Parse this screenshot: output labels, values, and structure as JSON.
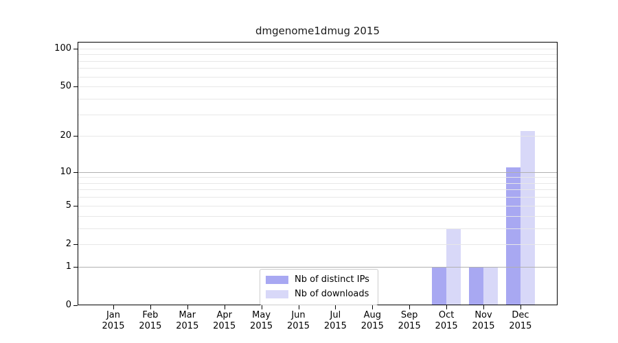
{
  "title": "dmgenome1dmug 2015",
  "colors": {
    "background": "#ffffff",
    "ips_bar": "#a8a8f2",
    "downloads_bar": "#d8d8f8",
    "grid_major": "#b0b0b0",
    "grid_minor": "#e7e7e7",
    "frame": "#000000"
  },
  "legend": {
    "items": [
      {
        "label": "Nb of distinct IPs",
        "color": "#a8a8f2"
      },
      {
        "label": "Nb of downloads",
        "color": "#d8d8f8"
      }
    ]
  },
  "chart_data": {
    "type": "bar",
    "title": "dmgenome1dmug 2015",
    "categories": [
      "Jan",
      "Feb",
      "Mar",
      "Apr",
      "May",
      "Jun",
      "Jul",
      "Aug",
      "Sep",
      "Oct",
      "Nov",
      "Dec"
    ],
    "category_year": "2015",
    "series": [
      {
        "name": "Nb of distinct IPs",
        "color": "#a8a8f2",
        "values": [
          0,
          0,
          0,
          0,
          0,
          0,
          0,
          0,
          0,
          1,
          1,
          11
        ]
      },
      {
        "name": "Nb of downloads",
        "color": "#d8d8f8",
        "values": [
          0,
          0,
          0,
          0,
          0,
          0,
          0,
          0,
          0,
          3,
          1,
          22
        ]
      }
    ],
    "yscale": "log1p",
    "ylim": [
      0,
      113
    ],
    "yticks": [
      0,
      1,
      2,
      5,
      10,
      20,
      50,
      100
    ],
    "ytick_labels": [
      "0",
      "1",
      "2",
      "5",
      "10",
      "20",
      "50",
      "100"
    ],
    "ymajor_gridlines": [
      1,
      10
    ],
    "yminor_gridlines": [
      3,
      4,
      6,
      7,
      8,
      9,
      30,
      40,
      60,
      70,
      80,
      90
    ],
    "grid": true,
    "legend_position": "lower center"
  }
}
